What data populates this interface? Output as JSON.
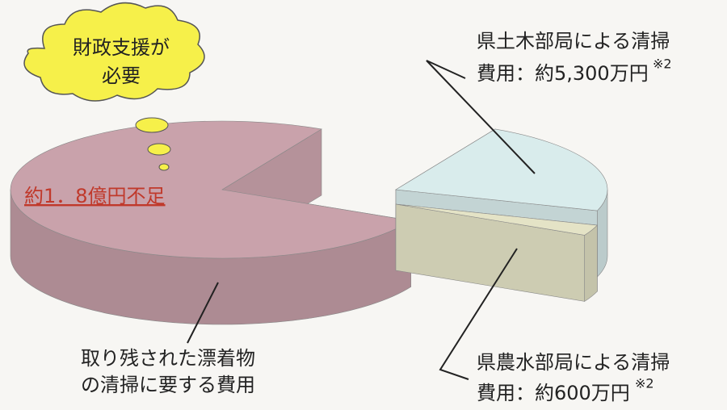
{
  "chart_data": {
    "type": "pie",
    "categories": [
      [
        "取り残された漂着物",
        "の清掃に要する費用"
      ],
      [
        "県土木部局による清掃",
        "費用：約5,300万円"
      ],
      [
        "県農水部局による清掃",
        "費用：約600万円"
      ]
    ],
    "values": [
      18000,
      5300,
      600
    ],
    "value_labels": [
      "約1．8億円不足",
      null,
      null
    ],
    "superscripts": [
      null,
      "※2",
      "※2"
    ],
    "colors": [
      "#c9a2ab",
      "#d9ecec",
      "#e4e3c6"
    ],
    "callout": [
      "財政支援が",
      "必要"
    ]
  }
}
